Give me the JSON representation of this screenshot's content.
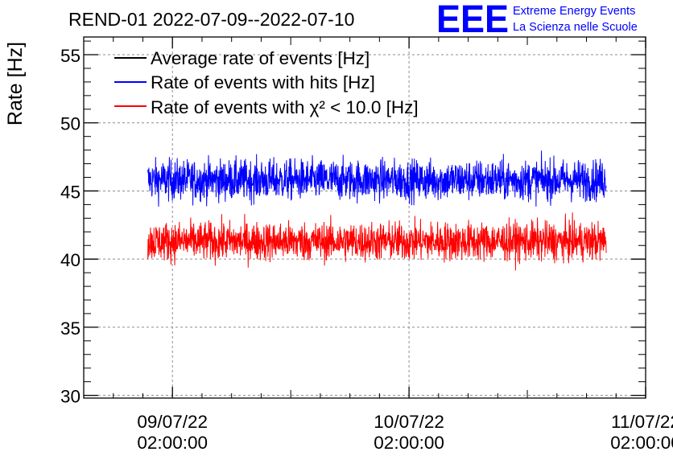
{
  "header": {
    "title": "REND-01 2022-07-09--2022-07-10",
    "logo_text": "EEE",
    "org_line1": "Extreme Energy Events",
    "org_line2": "La Scienza nelle Scuole"
  },
  "colors": {
    "average": "#000000",
    "hits": "#0000ff",
    "chi2": "#ff0000",
    "logo": "#0000ff",
    "grid": "#8c8c8c"
  },
  "chart_data": {
    "type": "line",
    "title": "REND-01 2022-07-09--2022-07-10",
    "xlabel": "",
    "ylabel": "Rate [Hz]",
    "xlim": [
      "2022-07-08 17:00:00",
      "2022-07-11 02:00:00"
    ],
    "ylim": [
      29.8,
      56.3
    ],
    "grid": true,
    "legend_position": "top-left",
    "y_ticks": [
      30,
      35,
      40,
      45,
      50,
      55
    ],
    "y_tick_labels": [
      "30",
      "35",
      "40",
      "45",
      "50",
      "55"
    ],
    "x_ticks": [
      {
        "date": "09/07/22",
        "time": "02:00:00"
      },
      {
        "date": "10/07/22",
        "time": "02:00:00"
      },
      {
        "date": "11/07/22",
        "time": "02:00:00"
      }
    ],
    "series": [
      {
        "name": "Average rate of events [Hz]",
        "values": []
      },
      {
        "name": "Rate of events with hits [Hz]",
        "x_range": [
          "2022-07-08 23:30:00",
          "2022-07-10 22:00:00"
        ],
        "mean": 45.8,
        "min": 43.5,
        "max": 49.2
      },
      {
        "name": "Rate of events with χ² < 10.0 [Hz]",
        "x_range": [
          "2022-07-08 23:30:00",
          "2022-07-10 22:00:00"
        ],
        "mean": 41.3,
        "min": 38.5,
        "max": 44.0
      }
    ]
  }
}
